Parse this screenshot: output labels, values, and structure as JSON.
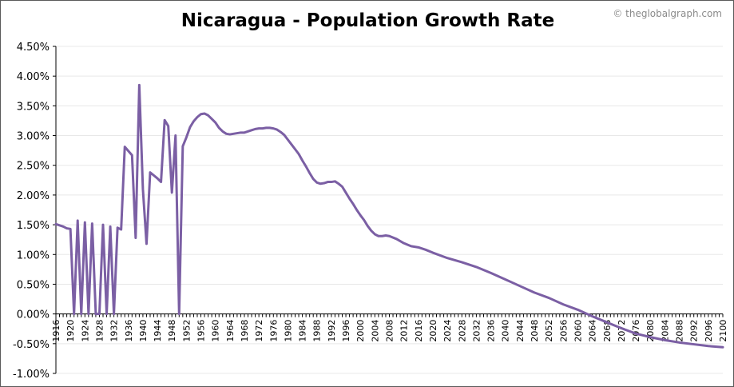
{
  "watermark": "© theglobalgraph.com",
  "colors": {
    "line": "#7b5fa4",
    "grid": "#e8e8e8",
    "axis": "#000000"
  },
  "chart_data": {
    "type": "line",
    "title": "Nicaragua - Population Growth Rate",
    "xlabel": "",
    "ylabel": "",
    "xlim": [
      1916,
      2100
    ],
    "ylim": [
      -1.0,
      4.5
    ],
    "yticks": [
      4.5,
      4.0,
      3.5,
      3.0,
      2.5,
      2.0,
      1.5,
      1.0,
      0.5,
      0.0,
      -0.5,
      -1.0
    ],
    "ytick_labels": [
      "4.50%",
      "4.00%",
      "3.50%",
      "3.00%",
      "2.50%",
      "2.00%",
      "1.50%",
      "1.00%",
      "0.50%",
      "0.00%",
      "-0.50%",
      "-1.00%"
    ],
    "xticks": [
      1916,
      1920,
      1924,
      1928,
      1932,
      1936,
      1940,
      1944,
      1948,
      1952,
      1956,
      1960,
      1964,
      1968,
      1972,
      1976,
      1980,
      1984,
      1988,
      1992,
      1996,
      2000,
      2004,
      2008,
      2012,
      2016,
      2020,
      2024,
      2028,
      2032,
      2036,
      2040,
      2044,
      2048,
      2052,
      2056,
      2060,
      2064,
      2068,
      2072,
      2076,
      2080,
      2084,
      2088,
      2092,
      2096,
      2100
    ],
    "grid": "horizontal",
    "legend": "none",
    "series": [
      {
        "x": [
          1916,
          1918,
          1919,
          1920,
          1921,
          1922,
          1923,
          1924,
          1925,
          1926,
          1927,
          1928,
          1929,
          1930,
          1931,
          1932,
          1933,
          1934,
          1935,
          1936,
          1937,
          1938,
          1939,
          1940,
          1941,
          1942,
          1944,
          1945,
          1946,
          1947,
          1948,
          1949,
          1950,
          1951,
          1952,
          1953,
          1954,
          1955,
          1956,
          1957,
          1958,
          1959,
          1960,
          1961,
          1962,
          1963,
          1964,
          1965,
          1966,
          1967,
          1968,
          1969,
          1970,
          1971,
          1972,
          1973,
          1974,
          1975,
          1976,
          1977,
          1978,
          1979,
          1980,
          1981,
          1982,
          1983,
          1984,
          1985,
          1986,
          1987,
          1988,
          1989,
          1990,
          1991,
          1992,
          1993,
          1994,
          1995,
          1996,
          1997,
          1998,
          1999,
          2000,
          2001,
          2002,
          2003,
          2004,
          2005,
          2006,
          2007,
          2008,
          2010,
          2012,
          2014,
          2016,
          2018,
          2020,
          2024,
          2028,
          2032,
          2036,
          2040,
          2044,
          2048,
          2052,
          2056,
          2060,
          2064,
          2068,
          2072,
          2076,
          2080,
          2084,
          2088,
          2092,
          2096,
          2100
        ],
        "values": [
          1.51,
          1.47,
          1.44,
          1.43,
          0.0,
          1.57,
          0.0,
          1.54,
          0.0,
          1.52,
          0.0,
          0.0,
          1.5,
          0.0,
          1.47,
          0.0,
          1.45,
          1.42,
          2.81,
          2.74,
          2.67,
          1.28,
          3.85,
          2.1,
          1.18,
          2.38,
          2.28,
          2.22,
          3.26,
          3.16,
          2.04,
          3.0,
          0.0,
          2.82,
          2.97,
          3.14,
          3.24,
          3.31,
          3.36,
          3.37,
          3.34,
          3.28,
          3.22,
          3.13,
          3.07,
          3.03,
          3.02,
          3.03,
          3.04,
          3.05,
          3.05,
          3.07,
          3.09,
          3.11,
          3.12,
          3.12,
          3.13,
          3.13,
          3.12,
          3.1,
          3.06,
          3.01,
          2.93,
          2.85,
          2.77,
          2.69,
          2.58,
          2.48,
          2.37,
          2.27,
          2.21,
          2.19,
          2.2,
          2.22,
          2.22,
          2.23,
          2.19,
          2.14,
          2.04,
          1.94,
          1.85,
          1.75,
          1.66,
          1.58,
          1.48,
          1.4,
          1.34,
          1.31,
          1.31,
          1.32,
          1.31,
          1.26,
          1.19,
          1.14,
          1.12,
          1.08,
          1.03,
          0.94,
          0.87,
          0.79,
          0.69,
          0.58,
          0.47,
          0.36,
          0.27,
          0.16,
          0.07,
          -0.04,
          -0.14,
          -0.24,
          -0.33,
          -0.39,
          -0.44,
          -0.48,
          -0.51,
          -0.54,
          -0.56
        ]
      }
    ]
  }
}
